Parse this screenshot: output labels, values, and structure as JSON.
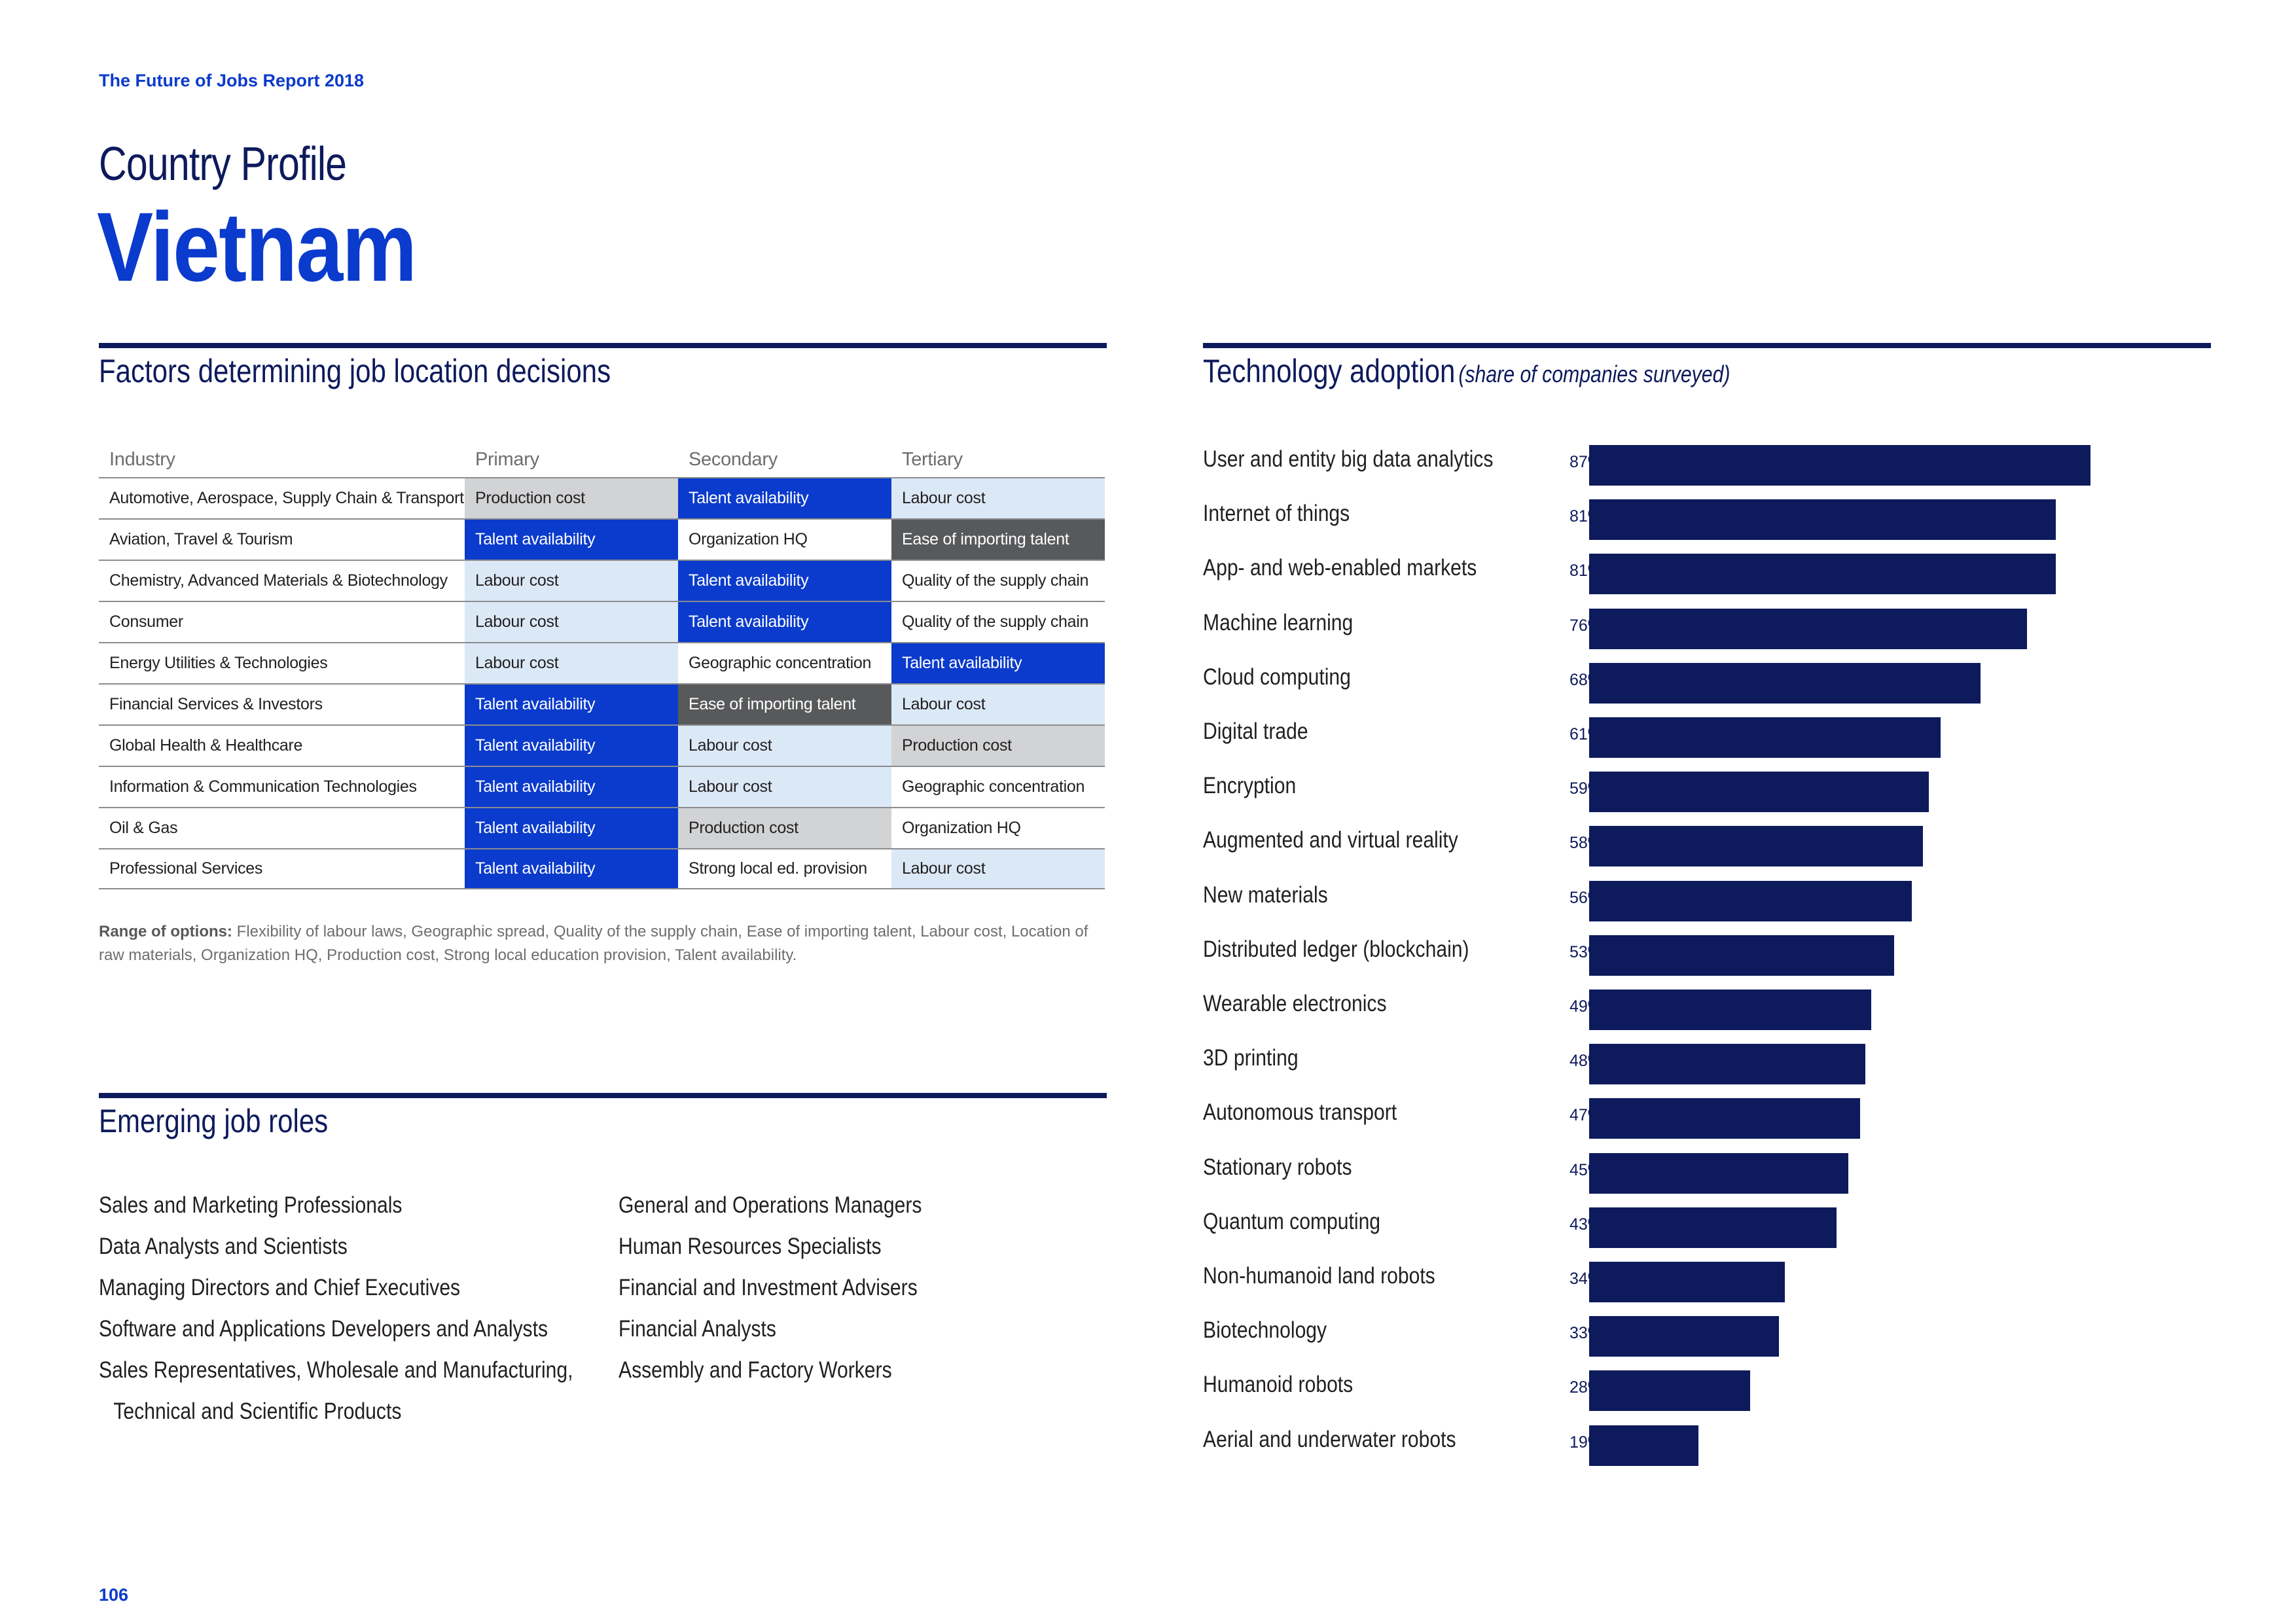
{
  "header": {
    "report_title": "The Future of Jobs Report 2018",
    "profile_label": "Country Profile",
    "country": "Vietnam"
  },
  "factors": {
    "heading": "Factors determining job location decisions",
    "columns": [
      "Industry",
      "Primary",
      "Secondary",
      "Tertiary"
    ],
    "rows": [
      {
        "industry": "Automotive, Aerospace, Supply Chain & Transport",
        "primary": "Production cost",
        "secondary": "Talent availability",
        "tertiary": "Labour cost"
      },
      {
        "industry": "Aviation, Travel & Tourism",
        "primary": "Talent availability",
        "secondary": "Organization HQ",
        "tertiary": "Ease of importing talent"
      },
      {
        "industry": "Chemistry, Advanced Materials & Biotechnology",
        "primary": "Labour cost",
        "secondary": "Talent availability",
        "tertiary": "Quality of the supply chain"
      },
      {
        "industry": "Consumer",
        "primary": "Labour cost",
        "secondary": "Talent availability",
        "tertiary": "Quality of the supply chain"
      },
      {
        "industry": "Energy Utilities & Technologies",
        "primary": "Labour cost",
        "secondary": "Geographic concentration",
        "tertiary": "Talent availability"
      },
      {
        "industry": "Financial Services & Investors",
        "primary": "Talent availability",
        "secondary": "Ease of importing talent",
        "tertiary": "Labour cost"
      },
      {
        "industry": "Global Health & Healthcare",
        "primary": "Talent availability",
        "secondary": "Labour cost",
        "tertiary": "Production cost"
      },
      {
        "industry": "Information & Communication Technologies",
        "primary": "Talent availability",
        "secondary": "Labour cost",
        "tertiary": "Geographic concentration"
      },
      {
        "industry": "Oil & Gas",
        "primary": "Talent availability",
        "secondary": "Production cost",
        "tertiary": "Organization HQ"
      },
      {
        "industry": "Professional Services",
        "primary": "Talent availability",
        "secondary": "Strong local ed. provision",
        "tertiary": "Labour cost"
      }
    ],
    "range_label": "Range of options:",
    "range_text": "Flexibility of labour laws, Geographic spread, Quality of the supply chain, Ease of importing talent, Labour cost, Location of raw materials, Organization HQ, Production cost, Strong local education provision, Talent availability.",
    "colors": {
      "talent": "#0b3bcc",
      "labour": "#dbe9f7",
      "production": "#d1d3d4",
      "ease": "#58595b"
    }
  },
  "roles": {
    "heading": "Emerging job roles",
    "left": [
      "Sales and Marketing Professionals",
      "Data Analysts and Scientists",
      "Managing Directors and Chief Executives",
      "Software and Applications Developers and Analysts",
      "Sales Representatives, Wholesale and Manufacturing,",
      "Technical and Scientific Products"
    ],
    "right": [
      "General and Operations Managers",
      "Human Resources Specialists",
      "Financial and Investment Advisers",
      "Financial Analysts",
      "Assembly and Factory Workers"
    ]
  },
  "tech": {
    "heading": "Technology adoption",
    "subheading": "(share of companies surveyed)"
  },
  "chart_data": {
    "type": "bar",
    "orientation": "horizontal",
    "title": "Technology adoption (share of companies surveyed)",
    "categories": [
      "User and entity big data analytics",
      "Internet of things",
      "App- and web-enabled markets",
      "Machine learning",
      "Cloud computing",
      "Digital trade",
      "Encryption",
      "Augmented and virtual reality",
      "New materials",
      "Distributed ledger (blockchain)",
      "Wearable electronics",
      "3D printing",
      "Autonomous transport",
      "Stationary robots",
      "Quantum computing",
      "Non-humanoid land robots",
      "Biotechnology",
      "Humanoid robots",
      "Aerial and underwater robots"
    ],
    "values": [
      87,
      81,
      81,
      76,
      68,
      61,
      59,
      58,
      56,
      53,
      49,
      48,
      47,
      45,
      43,
      34,
      33,
      28,
      19
    ],
    "labels": [
      "87%",
      "81%",
      "81%",
      "76%",
      "68%",
      "61%",
      "59%",
      "58%",
      "56%",
      "53%",
      "49%",
      "48%",
      "47%",
      "45%",
      "43%",
      "34%",
      "33%",
      "28%",
      "19%"
    ],
    "unit": "%",
    "xlim": [
      0,
      100
    ],
    "bar_color": "#0d1a5c"
  },
  "footer": {
    "page_number": "106"
  }
}
